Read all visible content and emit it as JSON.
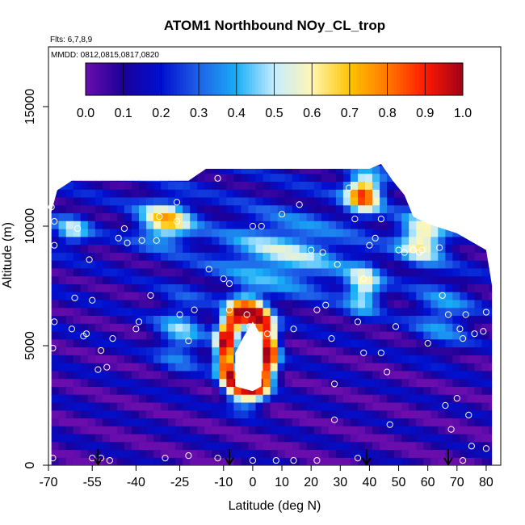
{
  "chart_data": {
    "type": "heatmap",
    "title": "ATOM1 Northbound NOy_CL_trop",
    "annotations": {
      "flights": "Flts: 6,7,8,9",
      "dates": "MMDD: 0812,0815,0817,0820"
    },
    "xlabel": "Latitude (deg N)",
    "ylabel": "Altitude (m)",
    "xlim": [
      -70,
      85
    ],
    "ylim": [
      0,
      17500
    ],
    "x_ticks": [
      -70,
      -55,
      -40,
      -25,
      -10,
      0,
      10,
      20,
      30,
      40,
      50,
      60,
      70,
      80
    ],
    "x_tick_labels": [
      "-70",
      "-55",
      "-40",
      "-25",
      "-10",
      "0",
      "10",
      "20",
      "30",
      "40",
      "50",
      "60",
      "70",
      "80"
    ],
    "y_ticks": [
      0,
      5000,
      10000,
      15000
    ],
    "y_tick_labels": [
      "0",
      "5000",
      "10000",
      "15000"
    ],
    "colorbar": {
      "range": [
        0,
        1
      ],
      "ticks": [
        0.0,
        0.1,
        0.2,
        0.3,
        0.4,
        0.5,
        0.6,
        0.7,
        0.8,
        0.9,
        1.0
      ],
      "tick_labels": [
        "0.0",
        "0.1",
        "0.2",
        "0.3",
        "0.4",
        "0.5",
        "0.6",
        "0.7",
        "0.8",
        "0.9",
        "1.0"
      ],
      "colors": [
        "#6a0dad",
        "#1a0099",
        "#0010d0",
        "#1f60e8",
        "#18aef6",
        "#c5ecff",
        "#fff6b5",
        "#ffc400",
        "#ff7800",
        "#ff1a00",
        "#a00018"
      ]
    },
    "top_edge": [
      [
        -69,
        10600
      ],
      [
        -67,
        11500
      ],
      [
        -62,
        11900
      ],
      [
        -40,
        11900
      ],
      [
        -22,
        11900
      ],
      [
        -16,
        12400
      ],
      [
        20,
        12400
      ],
      [
        40,
        12400
      ],
      [
        44,
        12600
      ],
      [
        48,
        11900
      ],
      [
        52,
        11300
      ],
      [
        55,
        10400
      ],
      [
        60,
        10100
      ],
      [
        70,
        9700
      ],
      [
        80,
        9000
      ],
      [
        82,
        7500
      ]
    ],
    "sample_points": [
      [
        -68.5,
        300
      ],
      [
        -68.5,
        4900
      ],
      [
        -68,
        6000
      ],
      [
        -69,
        10800
      ],
      [
        -68,
        10200
      ],
      [
        -68,
        9200
      ],
      [
        -62,
        5700
      ],
      [
        -61,
        7000
      ],
      [
        -60,
        9900
      ],
      [
        -58,
        5400
      ],
      [
        -57,
        5500
      ],
      [
        -56,
        8600
      ],
      [
        -55,
        6900
      ],
      [
        -55,
        300
      ],
      [
        -53,
        4000
      ],
      [
        -52,
        4800
      ],
      [
        -52,
        300
      ],
      [
        -50,
        4100
      ],
      [
        -49,
        200
      ],
      [
        -48,
        5300
      ],
      [
        -46,
        9500
      ],
      [
        -44,
        9900
      ],
      [
        -43,
        9300
      ],
      [
        -40,
        5700
      ],
      [
        -39,
        6000
      ],
      [
        -38,
        9400
      ],
      [
        -35,
        7100
      ],
      [
        -33,
        9400
      ],
      [
        -32,
        10400
      ],
      [
        -30,
        300
      ],
      [
        -26,
        11000
      ],
      [
        -26,
        10200
      ],
      [
        -25,
        6300
      ],
      [
        -22,
        5200
      ],
      [
        -22,
        400
      ],
      [
        -20,
        6500
      ],
      [
        -15,
        8200
      ],
      [
        -12,
        12000
      ],
      [
        -12,
        300
      ],
      [
        -10,
        7800
      ],
      [
        -8,
        7600
      ],
      [
        -8,
        6500
      ],
      [
        -2,
        6300
      ],
      [
        -1,
        5800
      ],
      [
        0,
        10000
      ],
      [
        0,
        200
      ],
      [
        3,
        10000
      ],
      [
        5,
        5500
      ],
      [
        8,
        200
      ],
      [
        10,
        10500
      ],
      [
        14,
        5700
      ],
      [
        14,
        200
      ],
      [
        16,
        10900
      ],
      [
        20,
        9000
      ],
      [
        22,
        6500
      ],
      [
        22,
        200
      ],
      [
        24,
        8900
      ],
      [
        25,
        6700
      ],
      [
        27,
        5300
      ],
      [
        28,
        3400
      ],
      [
        28,
        1900
      ],
      [
        29,
        8400
      ],
      [
        33,
        11600
      ],
      [
        35,
        10300
      ],
      [
        36,
        6000
      ],
      [
        36,
        300
      ],
      [
        38,
        4700
      ],
      [
        38,
        7800
      ],
      [
        40,
        9200
      ],
      [
        42,
        9500
      ],
      [
        44,
        10300
      ],
      [
        44,
        4700
      ],
      [
        46,
        3900
      ],
      [
        47,
        1700
      ],
      [
        49,
        5800
      ],
      [
        50,
        9000
      ],
      [
        52,
        8900
      ],
      [
        55,
        9000
      ],
      [
        57,
        8900
      ],
      [
        58,
        9000
      ],
      [
        60,
        5100
      ],
      [
        64,
        9100
      ],
      [
        65,
        7100
      ],
      [
        67,
        6300
      ],
      [
        66,
        2500
      ],
      [
        68,
        1500
      ],
      [
        70,
        2800
      ],
      [
        71,
        5700
      ],
      [
        72,
        5300
      ],
      [
        73,
        6300
      ],
      [
        74,
        2100
      ],
      [
        75,
        800
      ],
      [
        76,
        5500
      ],
      [
        79,
        5600
      ],
      [
        80,
        6400
      ],
      [
        80,
        700
      ],
      [
        72,
        200
      ]
    ],
    "arrows_x": [
      -53,
      -8,
      39,
      67
    ]
  }
}
